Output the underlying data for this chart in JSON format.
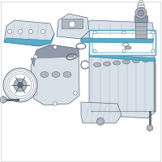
{
  "background_color": "#ffffff",
  "border_color": "#dddddd",
  "steel": "#b0b8c0",
  "dark": "#606878",
  "light": "#d8e0e8",
  "gasket_blue": "#5aacca",
  "mid": "#909aa8",
  "white": "#ffffff",
  "fig_width": 2.0,
  "fig_height": 2.0,
  "dpi": 100
}
